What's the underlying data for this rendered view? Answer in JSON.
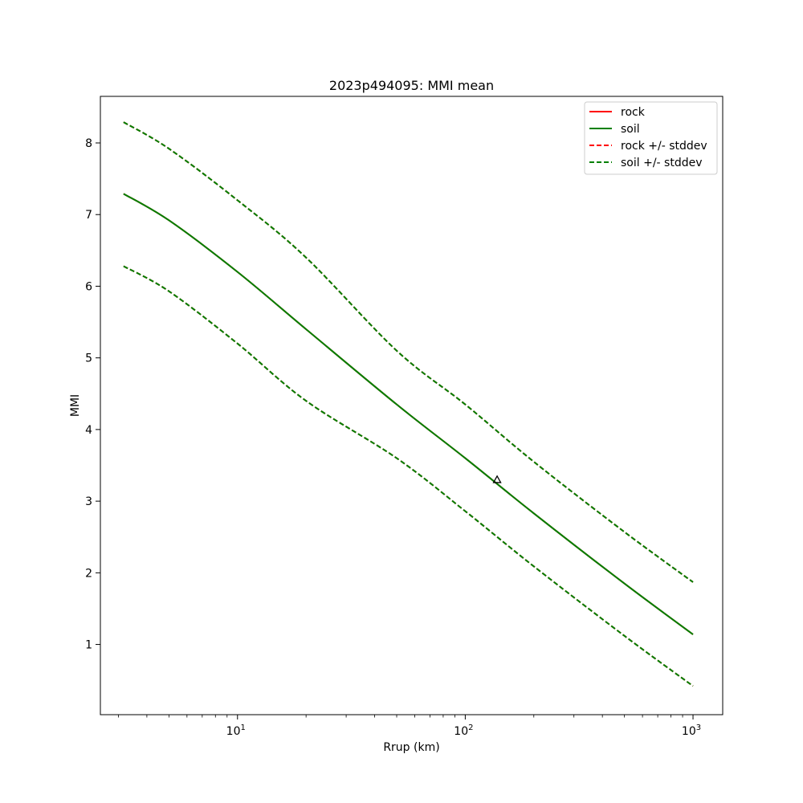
{
  "chart_data": {
    "type": "line",
    "title": "2023p494095: MMI mean",
    "xlabel": "Rrup (km)",
    "ylabel": "MMI",
    "xscale": "log",
    "xlim": [
      2.5,
      1350
    ],
    "ylim": [
      0.02,
      8.65
    ],
    "x_ticks": [
      {
        "value": 10,
        "base": "10",
        "exp": "1"
      },
      {
        "value": 100,
        "base": "10",
        "exp": "2"
      },
      {
        "value": 1000,
        "base": "10",
        "exp": "3"
      }
    ],
    "y_ticks": [
      1,
      2,
      3,
      4,
      5,
      6,
      7,
      8
    ],
    "grid": false,
    "legend_position": "top-right",
    "x": [
      3.16,
      5,
      10,
      20,
      50,
      100,
      200,
      500,
      1000
    ],
    "series": [
      {
        "name": "rock",
        "color": "#ff0000",
        "style": "solid",
        "values": [
          7.29,
          6.92,
          6.2,
          5.4,
          4.35,
          3.6,
          2.83,
          1.85,
          1.14
        ]
      },
      {
        "name": "soil",
        "color": "#008000",
        "style": "solid",
        "values": [
          7.29,
          6.92,
          6.2,
          5.4,
          4.35,
          3.6,
          2.83,
          1.85,
          1.14
        ]
      },
      {
        "name": "rock +/- stddev",
        "color": "#ff0000",
        "style": "dashed",
        "upper": [
          8.29,
          7.92,
          7.2,
          6.4,
          5.1,
          4.35,
          3.55,
          2.57,
          1.87
        ],
        "lower": [
          6.28,
          5.93,
          5.2,
          4.4,
          3.6,
          2.86,
          2.09,
          1.12,
          0.42
        ]
      },
      {
        "name": "soil +/- stddev",
        "color": "#008000",
        "style": "dashed",
        "upper": [
          8.29,
          7.92,
          7.2,
          6.4,
          5.1,
          4.35,
          3.55,
          2.57,
          1.87
        ],
        "lower": [
          6.28,
          5.93,
          5.2,
          4.4,
          3.6,
          2.86,
          2.09,
          1.12,
          0.42
        ]
      }
    ],
    "markers": [
      {
        "shape": "triangle",
        "x": 138,
        "y": 3.3,
        "color": "#000000"
      }
    ]
  }
}
